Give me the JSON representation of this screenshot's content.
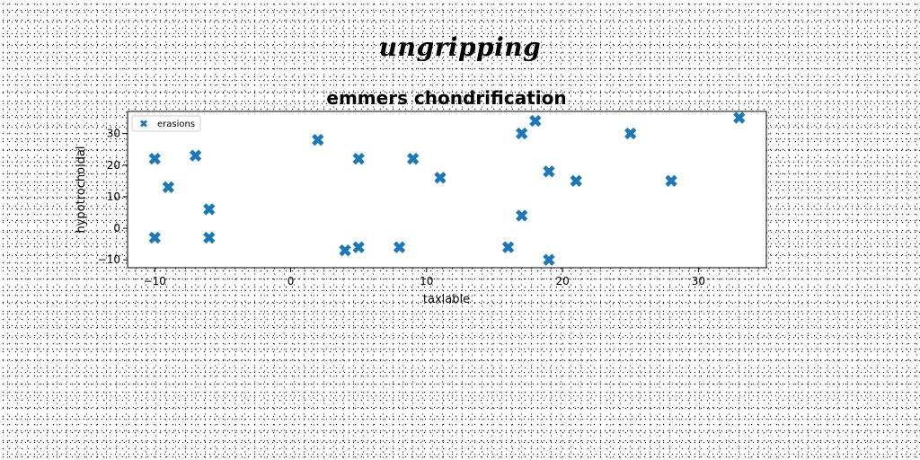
{
  "suptitle": "ungripping",
  "chart_data": {
    "type": "scatter",
    "title": "emmers chondrification",
    "xlabel": "taxiable",
    "ylabel": "hypotrochoidal",
    "xlim": [
      -12,
      35
    ],
    "ylim": [
      -12.5,
      37
    ],
    "xticks": [
      -10,
      0,
      10,
      20,
      30
    ],
    "yticks": [
      -10,
      0,
      10,
      20,
      30
    ],
    "grid": false,
    "legend_position": "top-left",
    "marker": "X",
    "series": [
      {
        "name": "erasions",
        "color": "#1f77b4",
        "points": [
          {
            "x": -10,
            "y": 22
          },
          {
            "x": -10,
            "y": -3
          },
          {
            "x": -9,
            "y": 13
          },
          {
            "x": -7,
            "y": 23
          },
          {
            "x": -6,
            "y": 6
          },
          {
            "x": -6,
            "y": -3
          },
          {
            "x": 2,
            "y": 28
          },
          {
            "x": 4,
            "y": -7
          },
          {
            "x": 5,
            "y": 22
          },
          {
            "x": 5,
            "y": -6
          },
          {
            "x": 8,
            "y": -6
          },
          {
            "x": 9,
            "y": 22
          },
          {
            "x": 11,
            "y": 16
          },
          {
            "x": 16,
            "y": -6
          },
          {
            "x": 17,
            "y": 30
          },
          {
            "x": 17,
            "y": 4
          },
          {
            "x": 18,
            "y": 34
          },
          {
            "x": 19,
            "y": 18
          },
          {
            "x": 19,
            "y": -10
          },
          {
            "x": 21,
            "y": 15
          },
          {
            "x": 25,
            "y": 30
          },
          {
            "x": 28,
            "y": 15
          },
          {
            "x": 33,
            "y": 35
          }
        ]
      }
    ]
  }
}
